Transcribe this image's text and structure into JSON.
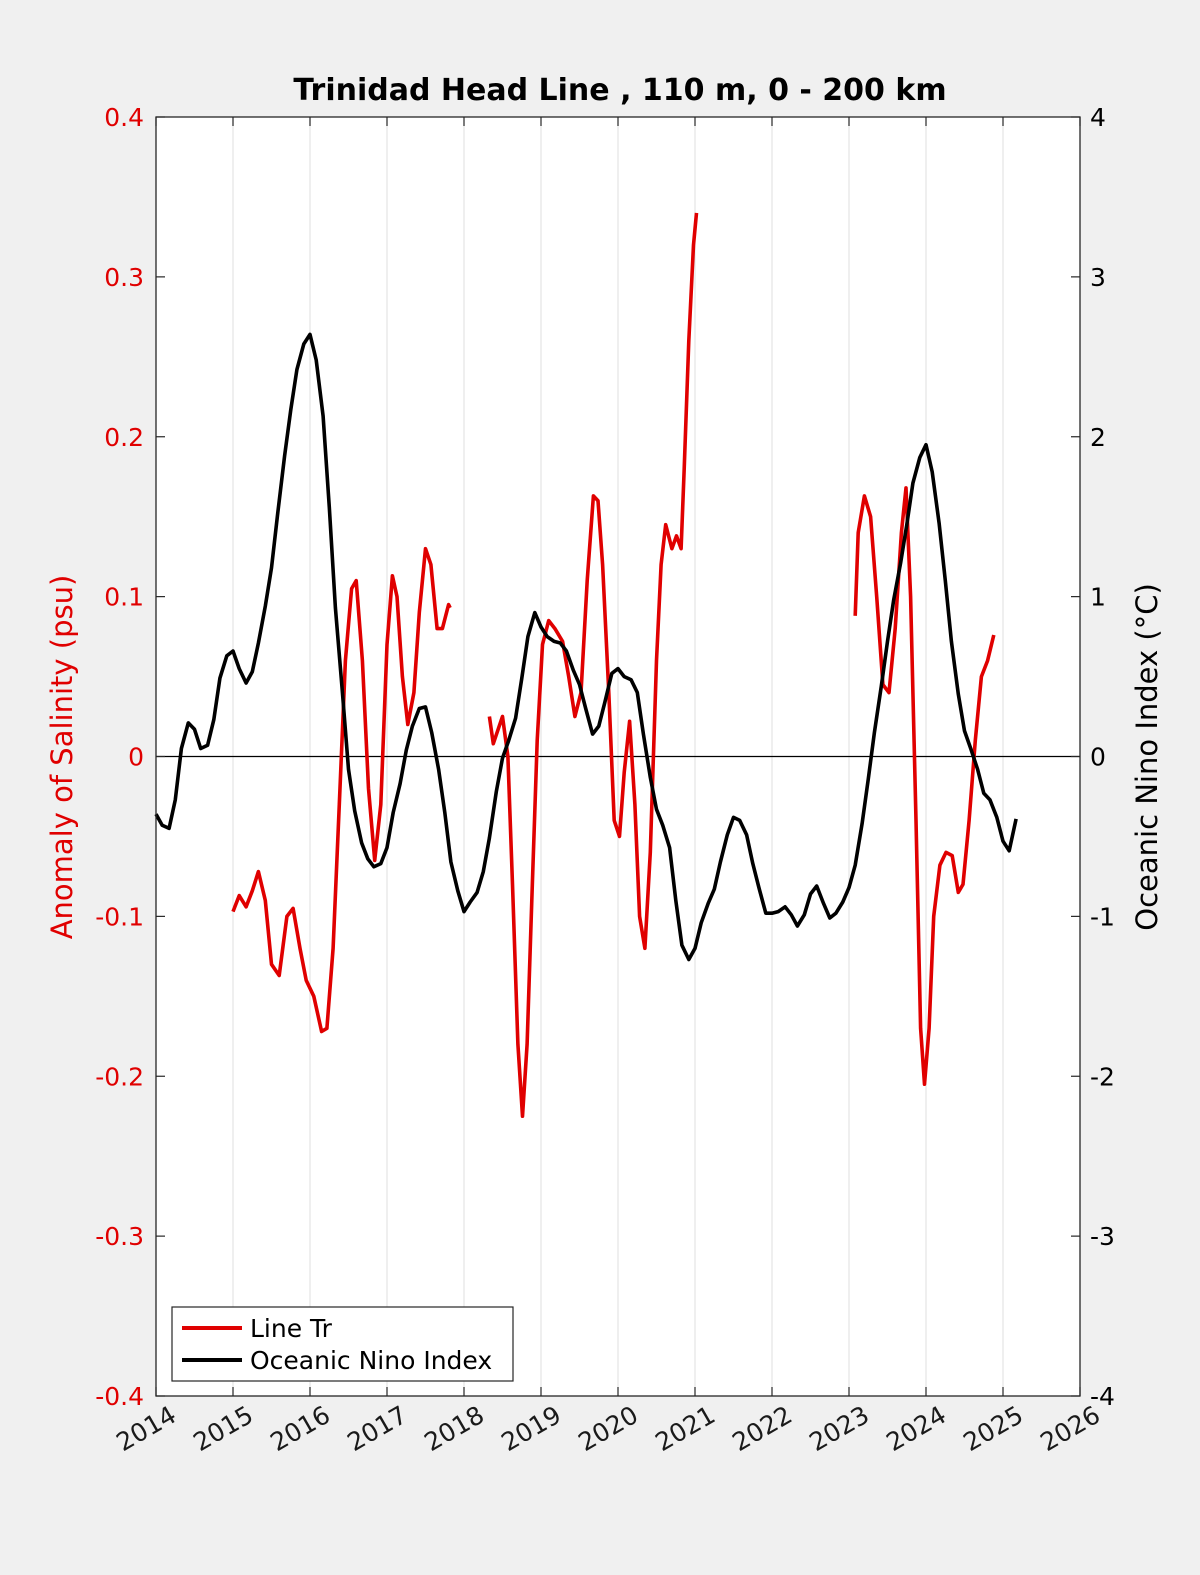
{
  "chart_data": {
    "type": "line",
    "title": "Trinidad Head Line , 110 m, 0 - 200 km",
    "ylabel_left": "Anomaly of Salinity (psu)",
    "ylabel_right": "Oceanic Nino Index (°C)",
    "xlim": [
      2014,
      2026
    ],
    "ylim_left": [
      -0.4,
      0.4
    ],
    "ylim_right": [
      -4,
      4
    ],
    "x_ticks": [
      2014,
      2015,
      2016,
      2017,
      2018,
      2019,
      2020,
      2021,
      2022,
      2023,
      2024,
      2025,
      2026
    ],
    "x_tick_labels": [
      "2014",
      "2015",
      "2016",
      "2017",
      "2018",
      "2019",
      "2020",
      "2021",
      "2022",
      "2023",
      "2024",
      "2025",
      "2026"
    ],
    "y_left_ticks": [
      0.4,
      0.3,
      0.2,
      0.1,
      0,
      -0.1,
      -0.2,
      -0.3,
      -0.4
    ],
    "y_left_tick_labels": [
      "0.4",
      "0.3",
      "0.2",
      "0.1",
      "0",
      "-0.1",
      "-0.2",
      "-0.3",
      "-0.4"
    ],
    "y_right_ticks": [
      4,
      3,
      2,
      1,
      0,
      -1,
      -2,
      -3,
      -4
    ],
    "y_right_tick_labels": [
      "4",
      "3",
      "2",
      "1",
      "0",
      "-1",
      "-2",
      "-3",
      "-4"
    ],
    "grid": "vertical",
    "zero_line": true,
    "legend_position": "bottom-left",
    "series": [
      {
        "name": "Line Tr",
        "axis": "left",
        "color": "#e00000",
        "segments": [
          [
            [
              2015.0,
              -0.097
            ],
            [
              2015.08,
              -0.087
            ],
            [
              2015.17,
              -0.094
            ],
            [
              2015.25,
              -0.084
            ],
            [
              2015.33,
              -0.072
            ],
            [
              2015.42,
              -0.09
            ],
            [
              2015.5,
              -0.13
            ],
            [
              2015.6,
              -0.137
            ],
            [
              2015.7,
              -0.1
            ],
            [
              2015.78,
              -0.095
            ],
            [
              2015.87,
              -0.12
            ],
            [
              2015.95,
              -0.14
            ],
            [
              2016.05,
              -0.15
            ],
            [
              2016.15,
              -0.172
            ],
            [
              2016.22,
              -0.17
            ],
            [
              2016.3,
              -0.12
            ],
            [
              2016.38,
              -0.03
            ],
            [
              2016.46,
              0.06
            ],
            [
              2016.54,
              0.105
            ],
            [
              2016.6,
              0.11
            ],
            [
              2016.68,
              0.06
            ],
            [
              2016.76,
              -0.02
            ],
            [
              2016.84,
              -0.065
            ],
            [
              2016.92,
              -0.03
            ],
            [
              2017.0,
              0.07
            ],
            [
              2017.07,
              0.113
            ],
            [
              2017.13,
              0.1
            ],
            [
              2017.2,
              0.05
            ],
            [
              2017.27,
              0.02
            ],
            [
              2017.35,
              0.04
            ],
            [
              2017.42,
              0.09
            ],
            [
              2017.5,
              0.13
            ],
            [
              2017.57,
              0.12
            ],
            [
              2017.65,
              0.08
            ],
            [
              2017.72,
              0.08
            ],
            [
              2017.8,
              0.095
            ],
            [
              2017.82,
              0.093
            ]
          ],
          [
            [
              2018.33,
              0.025
            ],
            [
              2018.38,
              0.008
            ],
            [
              2018.45,
              0.018
            ],
            [
              2018.5,
              0.025
            ],
            [
              2018.57,
              0.0
            ],
            [
              2018.63,
              -0.08
            ],
            [
              2018.7,
              -0.18
            ],
            [
              2018.76,
              -0.225
            ],
            [
              2018.82,
              -0.18
            ],
            [
              2018.88,
              -0.09
            ],
            [
              2018.95,
              0.01
            ],
            [
              2019.02,
              0.07
            ],
            [
              2019.1,
              0.085
            ],
            [
              2019.18,
              0.08
            ],
            [
              2019.28,
              0.072
            ],
            [
              2019.36,
              0.05
            ],
            [
              2019.44,
              0.025
            ],
            [
              2019.52,
              0.04
            ],
            [
              2019.6,
              0.11
            ],
            [
              2019.68,
              0.163
            ],
            [
              2019.74,
              0.16
            ],
            [
              2019.8,
              0.12
            ],
            [
              2019.88,
              0.04
            ],
            [
              2019.95,
              -0.04
            ],
            [
              2020.02,
              -0.05
            ],
            [
              2020.08,
              -0.01
            ],
            [
              2020.15,
              0.022
            ],
            [
              2020.22,
              -0.03
            ],
            [
              2020.28,
              -0.1
            ],
            [
              2020.35,
              -0.12
            ],
            [
              2020.42,
              -0.06
            ],
            [
              2020.5,
              0.06
            ],
            [
              2020.56,
              0.12
            ],
            [
              2020.62,
              0.145
            ],
            [
              2020.7,
              0.13
            ],
            [
              2020.76,
              0.138
            ],
            [
              2020.82,
              0.13
            ],
            [
              2020.86,
              0.18
            ],
            [
              2020.92,
              0.26
            ],
            [
              2020.98,
              0.32
            ],
            [
              2021.02,
              0.34
            ]
          ],
          [
            [
              2023.08,
              0.088
            ],
            [
              2023.12,
              0.14
            ],
            [
              2023.2,
              0.163
            ],
            [
              2023.28,
              0.15
            ],
            [
              2023.36,
              0.1
            ],
            [
              2023.44,
              0.045
            ],
            [
              2023.52,
              0.04
            ],
            [
              2023.6,
              0.08
            ],
            [
              2023.68,
              0.14
            ],
            [
              2023.74,
              0.168
            ],
            [
              2023.8,
              0.1
            ],
            [
              2023.87,
              -0.04
            ],
            [
              2023.93,
              -0.17
            ],
            [
              2023.98,
              -0.205
            ],
            [
              2024.04,
              -0.17
            ],
            [
              2024.1,
              -0.1
            ],
            [
              2024.18,
              -0.068
            ],
            [
              2024.26,
              -0.06
            ],
            [
              2024.34,
              -0.062
            ],
            [
              2024.42,
              -0.085
            ],
            [
              2024.48,
              -0.08
            ],
            [
              2024.56,
              -0.04
            ],
            [
              2024.64,
              0.01
            ],
            [
              2024.72,
              0.05
            ],
            [
              2024.8,
              0.06
            ],
            [
              2024.88,
              0.076
            ]
          ]
        ]
      },
      {
        "name": "Oceanic Nino Index",
        "axis": "right",
        "color": "#000000",
        "segments": [
          [
            [
              2014.0,
              -0.36
            ],
            [
              2014.08,
              -0.43
            ],
            [
              2014.17,
              -0.45
            ],
            [
              2014.25,
              -0.27
            ],
            [
              2014.33,
              0.05
            ],
            [
              2014.42,
              0.21
            ],
            [
              2014.5,
              0.17
            ],
            [
              2014.58,
              0.05
            ],
            [
              2014.67,
              0.07
            ],
            [
              2014.75,
              0.23
            ],
            [
              2014.83,
              0.49
            ],
            [
              2014.92,
              0.63
            ],
            [
              2015.0,
              0.66
            ],
            [
              2015.08,
              0.55
            ],
            [
              2015.17,
              0.46
            ],
            [
              2015.25,
              0.53
            ],
            [
              2015.33,
              0.71
            ],
            [
              2015.42,
              0.94
            ],
            [
              2015.5,
              1.18
            ],
            [
              2015.58,
              1.52
            ],
            [
              2015.67,
              1.88
            ],
            [
              2015.75,
              2.17
            ],
            [
              2015.83,
              2.42
            ],
            [
              2015.92,
              2.58
            ],
            [
              2016.0,
              2.64
            ],
            [
              2016.08,
              2.48
            ],
            [
              2016.17,
              2.13
            ],
            [
              2016.25,
              1.56
            ],
            [
              2016.33,
              0.93
            ],
            [
              2016.42,
              0.41
            ],
            [
              2016.5,
              -0.08
            ],
            [
              2016.58,
              -0.34
            ],
            [
              2016.67,
              -0.54
            ],
            [
              2016.75,
              -0.64
            ],
            [
              2016.83,
              -0.69
            ],
            [
              2016.92,
              -0.67
            ],
            [
              2017.0,
              -0.57
            ],
            [
              2017.08,
              -0.35
            ],
            [
              2017.17,
              -0.17
            ],
            [
              2017.25,
              0.04
            ],
            [
              2017.33,
              0.19
            ],
            [
              2017.42,
              0.3
            ],
            [
              2017.5,
              0.31
            ],
            [
              2017.58,
              0.15
            ],
            [
              2017.67,
              -0.08
            ],
            [
              2017.75,
              -0.35
            ],
            [
              2017.83,
              -0.66
            ],
            [
              2017.92,
              -0.84
            ],
            [
              2018.0,
              -0.97
            ],
            [
              2018.08,
              -0.91
            ],
            [
              2018.17,
              -0.85
            ],
            [
              2018.25,
              -0.72
            ],
            [
              2018.33,
              -0.51
            ],
            [
              2018.42,
              -0.22
            ],
            [
              2018.5,
              -0.01
            ],
            [
              2018.58,
              0.1
            ],
            [
              2018.67,
              0.24
            ],
            [
              2018.75,
              0.49
            ],
            [
              2018.83,
              0.75
            ],
            [
              2018.92,
              0.9
            ],
            [
              2019.0,
              0.81
            ],
            [
              2019.08,
              0.75
            ],
            [
              2019.17,
              0.72
            ],
            [
              2019.25,
              0.71
            ],
            [
              2019.33,
              0.66
            ],
            [
              2019.42,
              0.54
            ],
            [
              2019.5,
              0.45
            ],
            [
              2019.58,
              0.3
            ],
            [
              2019.67,
              0.14
            ],
            [
              2019.75,
              0.19
            ],
            [
              2019.83,
              0.34
            ],
            [
              2019.92,
              0.52
            ],
            [
              2020.0,
              0.55
            ],
            [
              2020.08,
              0.5
            ],
            [
              2020.17,
              0.48
            ],
            [
              2020.25,
              0.4
            ],
            [
              2020.33,
              0.14
            ],
            [
              2020.42,
              -0.13
            ],
            [
              2020.5,
              -0.33
            ],
            [
              2020.58,
              -0.43
            ],
            [
              2020.67,
              -0.57
            ],
            [
              2020.75,
              -0.9
            ],
            [
              2020.83,
              -1.18
            ],
            [
              2020.92,
              -1.27
            ],
            [
              2021.0,
              -1.2
            ],
            [
              2021.08,
              -1.04
            ],
            [
              2021.17,
              -0.92
            ],
            [
              2021.25,
              -0.83
            ],
            [
              2021.33,
              -0.66
            ],
            [
              2021.42,
              -0.49
            ],
            [
              2021.5,
              -0.38
            ],
            [
              2021.58,
              -0.4
            ],
            [
              2021.67,
              -0.49
            ],
            [
              2021.75,
              -0.67
            ],
            [
              2021.83,
              -0.82
            ],
            [
              2021.92,
              -0.98
            ],
            [
              2022.0,
              -0.98
            ],
            [
              2022.08,
              -0.97
            ],
            [
              2022.17,
              -0.94
            ],
            [
              2022.25,
              -0.99
            ],
            [
              2022.33,
              -1.06
            ],
            [
              2022.42,
              -0.99
            ],
            [
              2022.5,
              -0.86
            ],
            [
              2022.58,
              -0.81
            ],
            [
              2022.67,
              -0.92
            ],
            [
              2022.75,
              -1.01
            ],
            [
              2022.83,
              -0.98
            ],
            [
              2022.92,
              -0.91
            ],
            [
              2023.0,
              -0.82
            ],
            [
              2023.08,
              -0.68
            ],
            [
              2023.17,
              -0.42
            ],
            [
              2023.25,
              -0.14
            ],
            [
              2023.33,
              0.15
            ],
            [
              2023.42,
              0.44
            ],
            [
              2023.5,
              0.72
            ],
            [
              2023.58,
              0.98
            ],
            [
              2023.67,
              1.21
            ],
            [
              2023.75,
              1.45
            ],
            [
              2023.83,
              1.71
            ],
            [
              2023.92,
              1.87
            ],
            [
              2024.0,
              1.95
            ],
            [
              2024.08,
              1.78
            ],
            [
              2024.17,
              1.46
            ],
            [
              2024.25,
              1.1
            ],
            [
              2024.33,
              0.72
            ],
            [
              2024.42,
              0.39
            ],
            [
              2024.5,
              0.16
            ],
            [
              2024.58,
              0.05
            ],
            [
              2024.67,
              -0.08
            ],
            [
              2024.75,
              -0.23
            ],
            [
              2024.83,
              -0.27
            ],
            [
              2024.92,
              -0.38
            ],
            [
              2025.0,
              -0.53
            ],
            [
              2025.08,
              -0.59
            ],
            [
              2025.17,
              -0.39
            ]
          ]
        ]
      }
    ]
  }
}
